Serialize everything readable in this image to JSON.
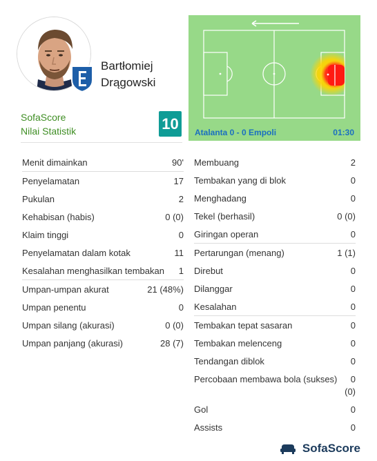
{
  "player": {
    "name_first": "Bartłomiej",
    "name_last": "Drągowski",
    "rating": "10"
  },
  "brand": {
    "line1": "SofaScore",
    "line2": "Nilai Statistik",
    "footer": "SofaScore",
    "footer_icon": "sofascore-logo-icon"
  },
  "heatmap": {
    "match": "Atalanta 0 - 0 Empoli",
    "time": "01:30",
    "direction_icon": "arrow-left-icon",
    "colors": {
      "pitch": "#97d988",
      "lines": "#ffffff",
      "hot": "#ff2a1a",
      "warm": "#ffd400",
      "text": "#1a6fc0"
    }
  },
  "stats_left": [
    [
      {
        "label": "Menit dimainkan",
        "value": "90'"
      }
    ],
    [
      {
        "label": "Penyelamatan",
        "value": "17"
      },
      {
        "label": "Pukulan",
        "value": "2"
      },
      {
        "label": "Kehabisan (habis)",
        "value": "0 (0)"
      },
      {
        "label": "Klaim tinggi",
        "value": "0"
      },
      {
        "label": "Penyelamatan dalam kotak",
        "value": "11"
      },
      {
        "label": "Kesalahan menghasilkan tembakan",
        "value": "1"
      }
    ],
    [
      {
        "label": "Umpan-umpan akurat",
        "value": "21 (48%)"
      },
      {
        "label": "Umpan penentu",
        "value": "0"
      },
      {
        "label": "Umpan silang (akurasi)",
        "value": "0 (0)"
      },
      {
        "label": "Umpan panjang (akurasi)",
        "value": "28 (7)"
      }
    ]
  ],
  "stats_right": [
    [
      {
        "label": "Membuang",
        "value": "2"
      },
      {
        "label": "Tembakan yang di blok",
        "value": "0"
      },
      {
        "label": "Menghadang",
        "value": "0"
      },
      {
        "label": "Tekel (berhasil)",
        "value": "0 (0)"
      },
      {
        "label": "Giringan operan",
        "value": "0"
      }
    ],
    [
      {
        "label": "Pertarungan (menang)",
        "value": "1 (1)"
      },
      {
        "label": "Direbut",
        "value": "0"
      },
      {
        "label": "Dilanggar",
        "value": "0"
      },
      {
        "label": "Kesalahan",
        "value": "0"
      }
    ],
    [
      {
        "label": "Tembakan tepat sasaran",
        "value": "0"
      },
      {
        "label": "Tembakan melenceng",
        "value": "0"
      },
      {
        "label": "Tendangan diblok",
        "value": "0"
      },
      {
        "label": "Percobaan membawa bola (sukses)",
        "value": "0\n(0)",
        "tall": true
      },
      {
        "label": "Gol",
        "value": "0"
      },
      {
        "label": "Assists",
        "value": "0"
      }
    ]
  ]
}
